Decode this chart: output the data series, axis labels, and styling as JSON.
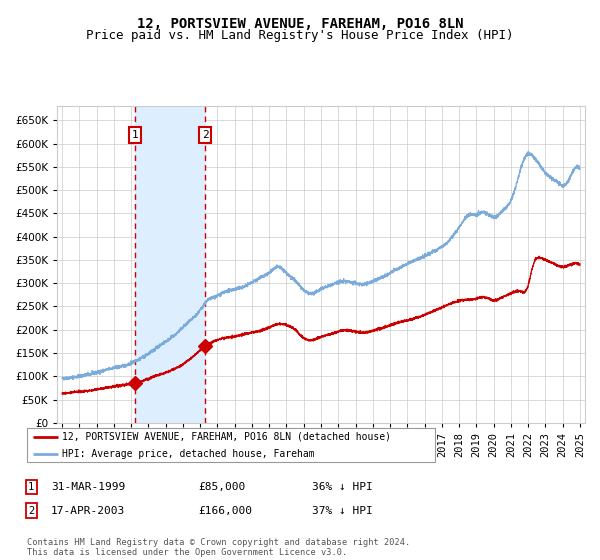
{
  "title": "12, PORTSVIEW AVENUE, FAREHAM, PO16 8LN",
  "subtitle": "Price paid vs. HM Land Registry's House Price Index (HPI)",
  "x_start_year": 1995,
  "x_end_year": 2025,
  "ylim": [
    0,
    680000
  ],
  "yticks": [
    0,
    50000,
    100000,
    150000,
    200000,
    250000,
    300000,
    350000,
    400000,
    450000,
    500000,
    550000,
    600000,
    650000
  ],
  "sale1_date": 1999.24,
  "sale1_price": 85000,
  "sale1_label": "1",
  "sale2_date": 2003.29,
  "sale2_price": 166000,
  "sale2_label": "2",
  "legend_line1": "12, PORTSVIEW AVENUE, FAREHAM, PO16 8LN (detached house)",
  "legend_line2": "HPI: Average price, detached house, Fareham",
  "table_row1": [
    "1",
    "31-MAR-1999",
    "£85,000",
    "36% ↓ HPI"
  ],
  "table_row2": [
    "2",
    "17-APR-2003",
    "£166,000",
    "37% ↓ HPI"
  ],
  "footnote": "Contains HM Land Registry data © Crown copyright and database right 2024.\nThis data is licensed under the Open Government Licence v3.0.",
  "red_line_color": "#cc0000",
  "blue_line_color": "#7aabdb",
  "shade_color": "#ddeeff",
  "grid_color": "#cccccc",
  "title_fontsize": 10,
  "subtitle_fontsize": 9,
  "axis_fontsize": 7.5,
  "background_color": "#ffffff"
}
